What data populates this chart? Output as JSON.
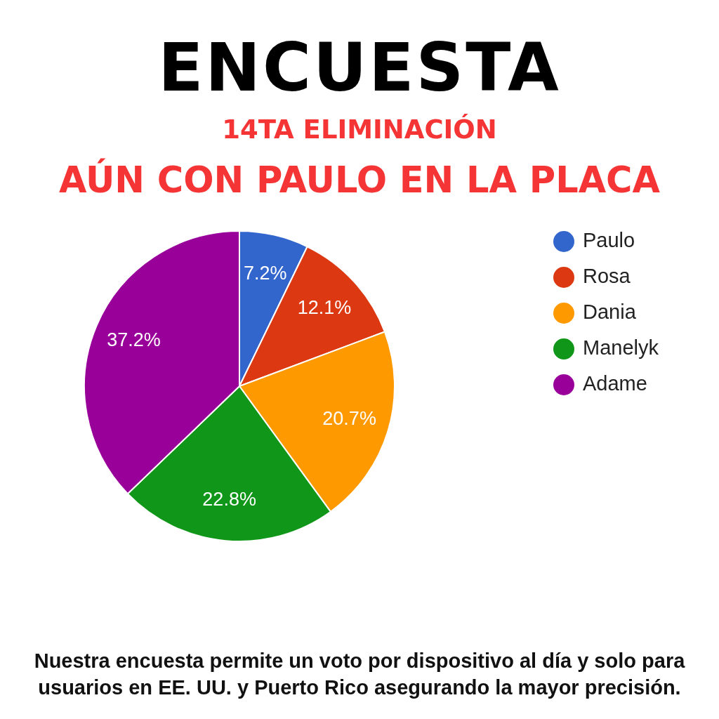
{
  "chart_data": {
    "type": "pie",
    "title": "ENCUESTA",
    "subtitle": "14TA ELIMINACIÓN",
    "annotations": [
      "AÚN CON PAULO EN LA PLACA",
      "Nuestra encuesta permite un voto por dispositivo al día y solo para usuarios en EE. UU. y Puerto Rico asegurando la mayor precisión."
    ],
    "categories": [
      "Paulo",
      "Rosa",
      "Dania",
      "Manelyk",
      "Adame"
    ],
    "values": [
      7.2,
      12.1,
      20.7,
      22.8,
      37.2
    ],
    "colors": [
      "#3366cc",
      "#dc3912",
      "#ff9900",
      "#109618",
      "#990099"
    ],
    "value_labels": [
      "7.2%",
      "12.1%",
      "20.7%",
      "22.8%",
      "37.2%"
    ],
    "legend": "right"
  }
}
